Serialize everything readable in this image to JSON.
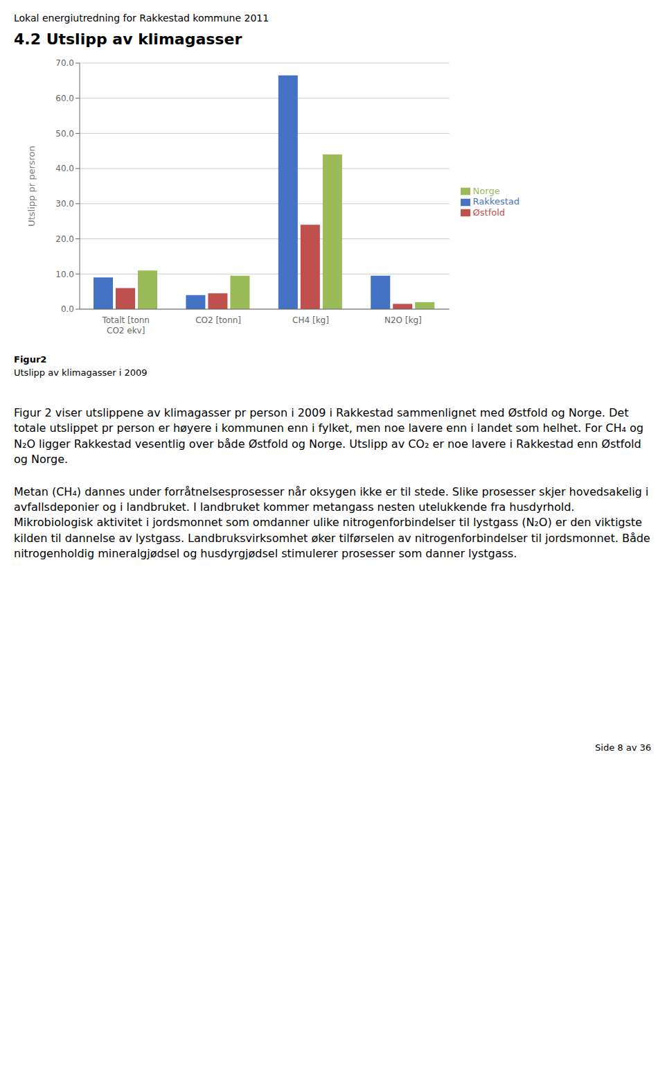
{
  "page_title": "Lokal energiutredning for Rakkestad kommune 2011",
  "section_title": "4.2  Utslipp av klimagasser",
  "figure_caption_bold": "Figur2",
  "figure_caption_normal": "Utslipp av klimagasser i 2009",
  "paragraphs": [
    "Figur 2 viser utslippene av klimagasser pr person i 2009 i Rakkestad sammenlignet med Østfold og Norge. Det totale utslippet pr person er høyere i kommunen enn i fylket, men noe lavere enn i landet som helhet. For CH₄ og N₂O ligger Rakkestad vesentlig over både Østfold og Norge. Utslipp av CO₂ er noe lavere i Rakkestad enn Østfold og Norge.",
    "Metan (CH₄) dannes under forråtnelsesprosesser når oksygen ikke er til stede. Slike prosesser skjer hovedsakelig i avfallsdeponier og i landbruket. I landbruket kommer metangass nesten utelukkende fra husdyrhold. Mikrobiologisk aktivitet i jordsmonnet som omdanner ulike nitrogenforbindelser til lystgass (N₂O) er den viktigste kilden til dannelse av lystgass. Landbruksvirksomhet øker tilførselen av nitrogenforbindelser til jordsmonnet. Både nitrogenholdig mineralgjødsel og husdyrgjødsel stimulerer prosesser som danner lystgass."
  ],
  "page_number": "Side 8 av 36",
  "chart_data": {
    "type": "bar",
    "ylabel": "Utslipp pr persron",
    "categories": [
      "Totalt [tonn\nCO2 ekv]",
      "CO2 [tonn]",
      "CH4 [kg]",
      "N2O [kg]"
    ],
    "series": [
      {
        "name": "Rakkestad",
        "color": "#4472C4",
        "values": [
          9.0,
          4.0,
          66.5,
          9.5
        ]
      },
      {
        "name": "Østfold",
        "color": "#C0504D",
        "values": [
          6.0,
          4.5,
          24.0,
          1.5
        ]
      },
      {
        "name": "Norge",
        "color": "#9BBB59",
        "values": [
          11.0,
          9.5,
          44.0,
          2.0
        ]
      }
    ],
    "ylim": [
      0,
      70
    ],
    "yticks": [
      {
        "value": 0,
        "label": "0.0"
      },
      {
        "value": 10,
        "label": "10.0"
      },
      {
        "value": 20,
        "label": "20.0"
      },
      {
        "value": 30,
        "label": "30.0"
      },
      {
        "value": 40,
        "label": "40.0"
      },
      {
        "value": 50,
        "label": "50.0"
      },
      {
        "value": 60,
        "label": "60.0"
      },
      {
        "value": 70,
        "label": "70.0"
      }
    ],
    "grid": true,
    "legend": "right"
  }
}
